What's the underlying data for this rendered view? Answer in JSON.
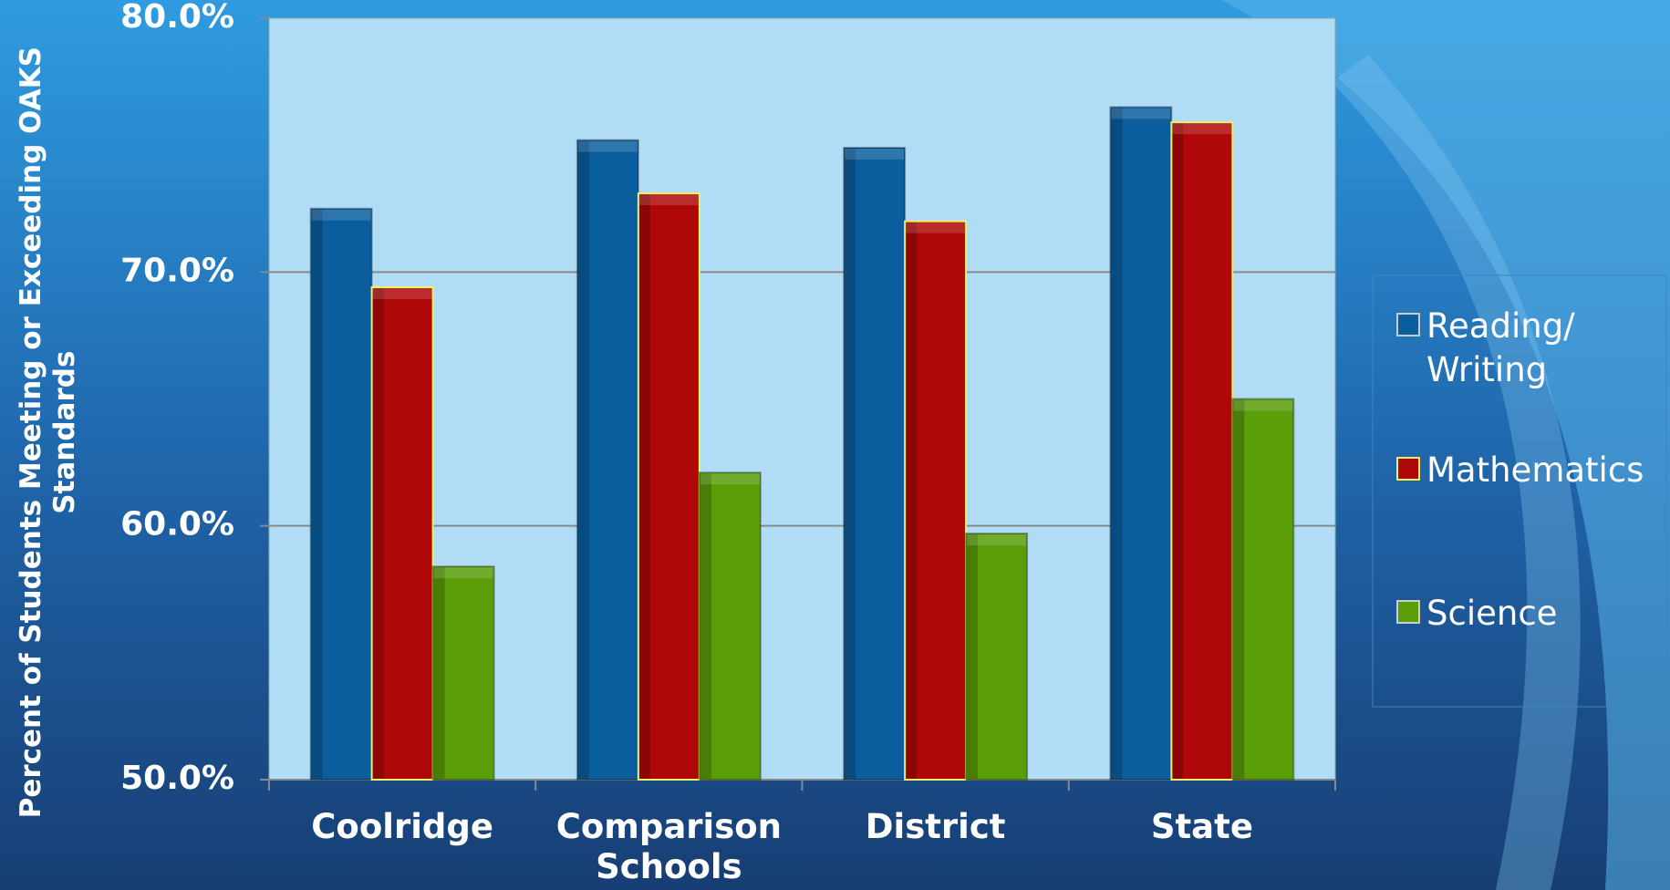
{
  "chart_data": {
    "type": "bar",
    "y_label": "Percent of Students Meeting or Exceeding OAKS Standards",
    "categories": [
      "Coolridge",
      "Comparison Schools",
      "District",
      "State"
    ],
    "series": [
      {
        "name": "Reading/ Writing",
        "color": "#0a5e9e",
        "values": [
          72.5,
          75.2,
          74.9,
          76.5
        ]
      },
      {
        "name": "Mathematics",
        "color": "#b00808",
        "values": [
          69.4,
          73.1,
          72.0,
          75.9
        ]
      },
      {
        "name": "Science",
        "color": "#5a9e0a",
        "values": [
          58.4,
          62.1,
          59.7,
          65.0
        ]
      }
    ],
    "ylim": [
      50,
      80
    ],
    "yticks": [
      {
        "value": 50,
        "label": "50.0%"
      },
      {
        "value": 60,
        "label": "60.0%"
      },
      {
        "value": 70,
        "label": "70.0%"
      },
      {
        "value": 80,
        "label": "80.0%"
      }
    ],
    "grid": true,
    "legend": "right"
  }
}
